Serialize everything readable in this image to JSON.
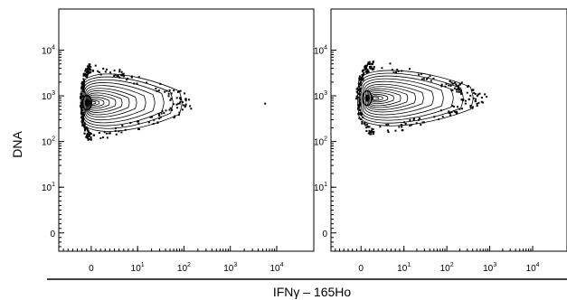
{
  "chart_data": {
    "type": "contour-scatter",
    "ylabel": "DNA",
    "xlabel": "IFNγ – 165Ho",
    "x_ticks": [
      {
        "value": 0,
        "label": "0",
        "exp": ""
      },
      {
        "value": 1,
        "label": "10",
        "exp": "1"
      },
      {
        "value": 2,
        "label": "10",
        "exp": "2"
      },
      {
        "value": 3,
        "label": "10",
        "exp": "3"
      },
      {
        "value": 4,
        "label": "10",
        "exp": "4"
      }
    ],
    "y_ticks": [
      {
        "value": 0,
        "label": "0",
        "exp": ""
      },
      {
        "value": 1,
        "label": "10",
        "exp": "1"
      },
      {
        "value": 2,
        "label": "10",
        "exp": "2"
      },
      {
        "value": 3,
        "label": "10",
        "exp": "3"
      },
      {
        "value": 4,
        "label": "10",
        "exp": "4"
      }
    ],
    "x_range": [
      -0.7,
      4.8
    ],
    "y_range": [
      -0.4,
      4.9
    ],
    "panels": [
      {
        "center": {
          "x": 0.0,
          "y": 2.85
        },
        "x_extent": [
          -0.2,
          1.9
        ],
        "y_extent": [
          1.9,
          3.35
        ],
        "outliers": [
          {
            "x": 3.75,
            "y": 2.83
          }
        ]
      },
      {
        "center": {
          "x": 0.3,
          "y": 2.95
        },
        "x_extent": [
          -0.05,
          2.55
        ],
        "y_extent": [
          2.05,
          3.45
        ],
        "outliers": []
      }
    ]
  }
}
